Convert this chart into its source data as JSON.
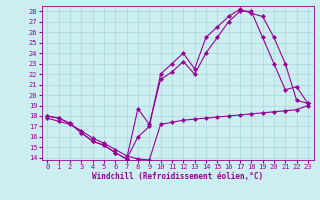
{
  "xlabel": "Windchill (Refroidissement éolien,°C)",
  "bg_color": "#cceef0",
  "line_color": "#990099",
  "grid_color": "#aad8dc",
  "xlim_min": -0.5,
  "xlim_max": 23.5,
  "ylim_min": 13.8,
  "ylim_max": 28.5,
  "xticks": [
    0,
    1,
    2,
    3,
    4,
    5,
    6,
    7,
    8,
    9,
    10,
    11,
    12,
    13,
    14,
    15,
    16,
    17,
    18,
    19,
    20,
    21,
    22,
    23
  ],
  "yticks": [
    14,
    15,
    16,
    17,
    18,
    19,
    20,
    21,
    22,
    23,
    24,
    25,
    26,
    27,
    28
  ],
  "series1_x": [
    0,
    1,
    2,
    3,
    4,
    5,
    6,
    7,
    8,
    9,
    10,
    11,
    12,
    13,
    14,
    15,
    16,
    17,
    18,
    19,
    20,
    21,
    22,
    23
  ],
  "series1_y": [
    17.8,
    17.5,
    17.2,
    16.6,
    15.9,
    15.4,
    14.8,
    14.2,
    13.9,
    13.8,
    17.2,
    17.4,
    17.6,
    17.7,
    17.8,
    17.9,
    18.0,
    18.1,
    18.2,
    18.3,
    18.4,
    18.5,
    18.6,
    19.0
  ],
  "series2_x": [
    0,
    1,
    2,
    3,
    4,
    5,
    6,
    7,
    8,
    9,
    10,
    11,
    12,
    13,
    14,
    15,
    16,
    17,
    18,
    19,
    20,
    21,
    22,
    23
  ],
  "series2_y": [
    18.0,
    17.8,
    17.3,
    16.4,
    15.6,
    15.2,
    14.5,
    13.9,
    18.7,
    17.2,
    21.5,
    22.2,
    23.2,
    22.0,
    24.0,
    25.5,
    27.0,
    28.0,
    28.0,
    25.5,
    23.0,
    20.5,
    20.8,
    19.2
  ],
  "series3_x": [
    0,
    1,
    2,
    3,
    4,
    5,
    6,
    7,
    8,
    9,
    10,
    11,
    12,
    13,
    14,
    15,
    16,
    17,
    18,
    19,
    20,
    21,
    22,
    23
  ],
  "series3_y": [
    18.0,
    17.8,
    17.3,
    16.4,
    15.6,
    15.2,
    14.5,
    13.9,
    16.0,
    17.0,
    22.0,
    23.0,
    24.0,
    22.5,
    25.5,
    26.5,
    27.5,
    28.2,
    27.8,
    27.5,
    25.5,
    23.0,
    19.5,
    19.2
  ],
  "tick_fontsize": 5.0,
  "xlabel_fontsize": 5.5
}
